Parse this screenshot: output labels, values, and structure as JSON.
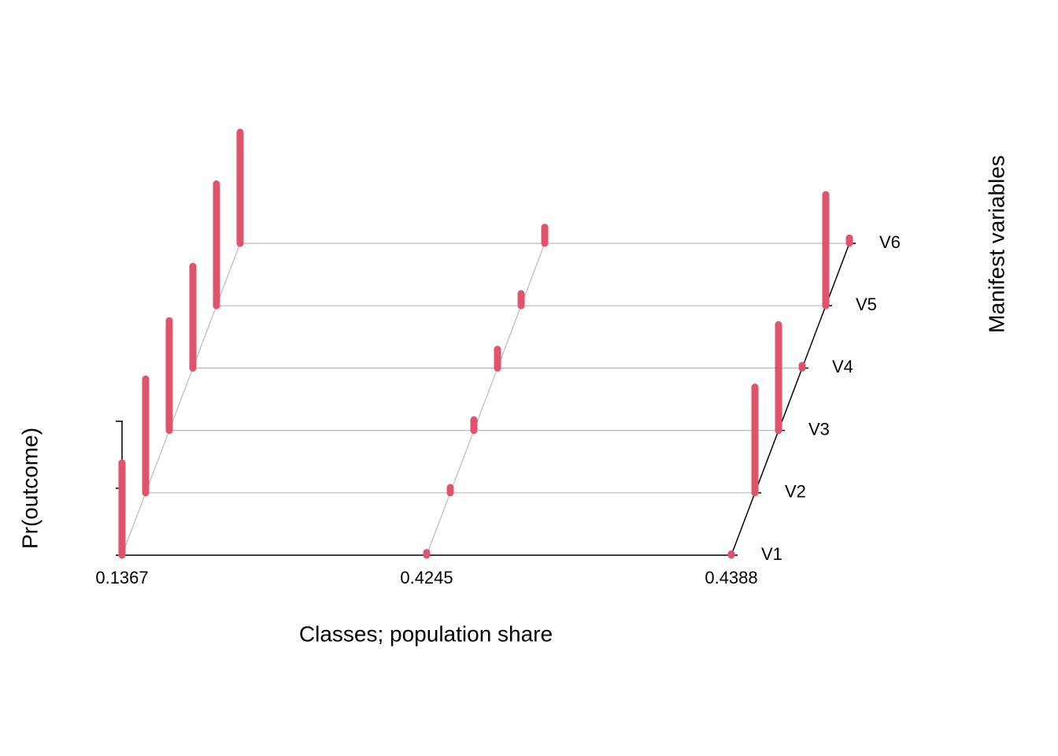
{
  "chart_data": {
    "type": "bar3d",
    "xlabel": "Classes; population share",
    "ylabel": "Pr(outcome)",
    "zlabel": "Manifest variables",
    "categories": [
      "0.1367",
      "0.4245",
      "0.4388"
    ],
    "variables": [
      "V1",
      "V2",
      "V3",
      "V4",
      "V5",
      "V6"
    ],
    "values": [
      [
        0.69,
        0.85,
        0.82,
        0.76,
        0.91,
        0.83
      ],
      [
        0.02,
        0.04,
        0.08,
        0.14,
        0.09,
        0.12
      ],
      [
        0.01,
        0.79,
        0.79,
        0.02,
        0.83,
        0.04
      ]
    ],
    "color": "#df536b",
    "ylim": [
      0,
      1
    ],
    "yticks": [
      0,
      0.5,
      1
    ]
  }
}
